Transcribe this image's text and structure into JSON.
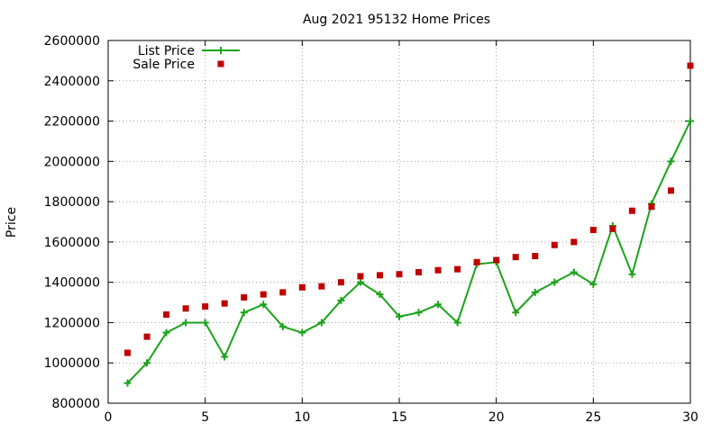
{
  "chart_data": {
    "type": "line",
    "title": "Aug 2021 95132 Home Prices",
    "xlabel": "",
    "ylabel": "Price",
    "xlim": [
      0,
      30
    ],
    "ylim": [
      800000,
      2600000
    ],
    "xticks": [
      0,
      5,
      10,
      15,
      20,
      25,
      30
    ],
    "yticks": [
      800000,
      1000000,
      1200000,
      1400000,
      1600000,
      1800000,
      2000000,
      2200000,
      2400000,
      2600000
    ],
    "grid": true,
    "legend_position": "top-left",
    "x": [
      1,
      2,
      3,
      4,
      5,
      6,
      7,
      8,
      9,
      10,
      11,
      12,
      13,
      14,
      15,
      16,
      17,
      18,
      19,
      20,
      21,
      22,
      23,
      24,
      25,
      26,
      27,
      28,
      29,
      30
    ],
    "series": [
      {
        "name": "List Price",
        "style": "line-points",
        "color": "#1aa31a",
        "values": [
          900000,
          1000000,
          1150000,
          1200000,
          1200000,
          1030000,
          1250000,
          1290000,
          1180000,
          1150000,
          1200000,
          1310000,
          1400000,
          1340000,
          1230000,
          1250000,
          1290000,
          1200000,
          1490000,
          1500000,
          1250000,
          1350000,
          1400000,
          1450000,
          1390000,
          1680000,
          1440000,
          1790000,
          2000000,
          2200000
        ]
      },
      {
        "name": "Sale Price",
        "style": "points",
        "color": "#c00000",
        "values": [
          1050000,
          1130000,
          1240000,
          1270000,
          1280000,
          1295000,
          1325000,
          1340000,
          1350000,
          1375000,
          1380000,
          1400000,
          1430000,
          1435000,
          1440000,
          1450000,
          1460000,
          1465000,
          1500000,
          1510000,
          1525000,
          1530000,
          1585000,
          1600000,
          1660000,
          1665000,
          1755000,
          1775000,
          1855000,
          2475000
        ]
      }
    ]
  }
}
